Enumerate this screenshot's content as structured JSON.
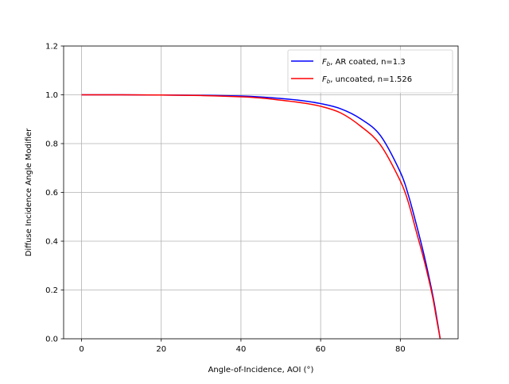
{
  "chart_data": {
    "type": "line",
    "title": "",
    "xlabel": "Angle-of-Incidence, AOI (°)",
    "ylabel": "Diffuse Incidence Angle Modifier",
    "xlim": [
      -4.5,
      94.5
    ],
    "ylim": [
      0,
      1.2
    ],
    "xticks": [
      0,
      20,
      40,
      60,
      80
    ],
    "xtick_labels": [
      "0",
      "20",
      "40",
      "60",
      "80"
    ],
    "yticks": [
      0,
      0.2,
      0.4,
      0.6,
      0.8,
      1.0,
      1.2
    ],
    "ytick_labels": [
      "0.0",
      "0.2",
      "0.4",
      "0.6",
      "0.8",
      "1.0",
      "1.2"
    ],
    "grid": true,
    "legend_placement": "upper-right",
    "x": [
      0,
      10,
      20,
      30,
      40,
      45,
      50,
      55,
      60,
      65,
      70,
      75,
      80,
      82,
      84,
      86,
      88,
      89,
      90
    ],
    "series": [
      {
        "name": "F_b, AR coated, n=1.3",
        "name_main": "F",
        "name_sub": "b",
        "name_rest": ", AR coated, n=1.3",
        "color": "#0000ff",
        "values": [
          1.0,
          1.0,
          0.999,
          0.998,
          0.995,
          0.991,
          0.985,
          0.977,
          0.964,
          0.943,
          0.902,
          0.833,
          0.683,
          0.59,
          0.47,
          0.34,
          0.19,
          0.1,
          0.0
        ]
      },
      {
        "name": "F_b, uncoated, n=1.526",
        "name_main": "F",
        "name_sub": "b",
        "name_rest": ", uncoated, n=1.526",
        "color": "#ff0000",
        "values": [
          1.0,
          1.0,
          0.999,
          0.997,
          0.992,
          0.987,
          0.978,
          0.968,
          0.953,
          0.926,
          0.872,
          0.795,
          0.647,
          0.56,
          0.44,
          0.32,
          0.18,
          0.09,
          0.0
        ]
      }
    ]
  }
}
